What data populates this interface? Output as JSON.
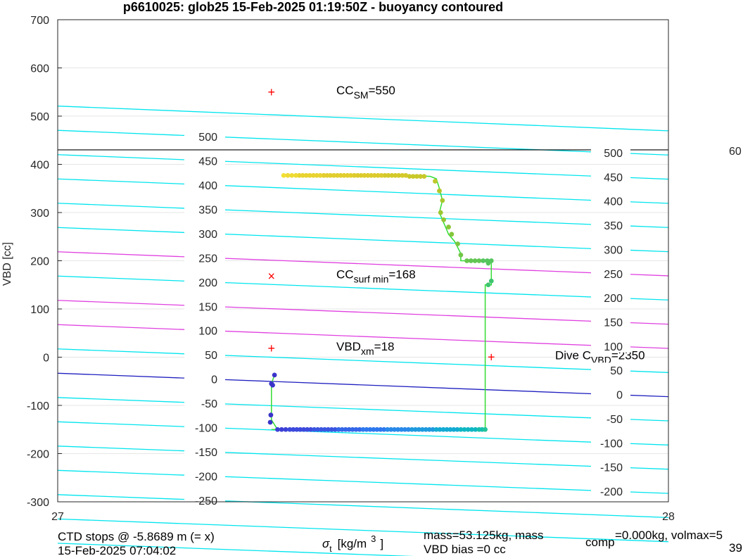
{
  "chart_data": {
    "type": "scatter",
    "title": "p6610025: glob25 15-Feb-2025 01:19:50Z - buoyancy contoured",
    "ylabel": "VBD [cc]",
    "xlabel": {
      "sigma": "σ",
      "sub": "t",
      "text": "[kg/m",
      "sup": "3",
      "close": "]"
    },
    "xlim": [
      27,
      28
    ],
    "ylim": [
      -300,
      700
    ],
    "x_ticks": [
      "27",
      "28"
    ],
    "y_ticks": [
      "-300",
      "-200",
      "-100",
      "0",
      "100",
      "200",
      "300",
      "400",
      "500",
      "600",
      "700"
    ],
    "grid": true,
    "contour_labels_left": [
      "500",
      "450",
      "400",
      "350",
      "300",
      "250",
      "200",
      "150",
      "100",
      "50",
      "0",
      "-50",
      "-100",
      "-150",
      "-200",
      "-250"
    ],
    "contour_labels_right": [
      "500",
      "450",
      "400",
      "350",
      "300",
      "250",
      "200",
      "150",
      "100",
      "50",
      "0",
      "-50",
      "-100",
      "-150",
      "-200"
    ],
    "contour_colors": {
      "normal": "#00e5ee",
      "highlight": "#e040e0",
      "zero": "#2020c0"
    },
    "reference_line_y": 430,
    "annotations": [
      {
        "marker": "+",
        "x": 27.35,
        "y": 550,
        "label_main": "CC",
        "label_sub": "SM",
        "label_rest": "=550"
      },
      {
        "marker": "×",
        "x": 27.35,
        "y": 168,
        "label_main": "CC",
        "label_sub": "surf min",
        "label_rest": "=168"
      },
      {
        "marker": "+",
        "x": 27.35,
        "y": 18,
        "label_main": "VBD",
        "label_sub": "xm",
        "label_rest": "=18"
      },
      {
        "marker": "+",
        "x": 27.71,
        "y": 0,
        "label_main": "Dive C",
        "label_sub": "VBD",
        "label_rest": "=2350"
      }
    ],
    "right_edge_fragment": "60",
    "trajectory": {
      "color_line": "#33dd33",
      "path": [
        [
          27.355,
          -37
        ],
        [
          27.35,
          -55
        ],
        [
          27.35,
          -130
        ],
        [
          27.36,
          -150
        ],
        [
          27.35,
          -150
        ],
        [
          27.7,
          -150
        ],
        [
          27.7,
          150
        ],
        [
          27.71,
          150
        ],
        [
          27.71,
          200
        ],
        [
          27.68,
          200
        ],
        [
          27.66,
          200
        ],
        [
          27.66,
          215
        ],
        [
          27.65,
          240
        ],
        [
          27.64,
          255
        ],
        [
          27.635,
          270
        ],
        [
          27.63,
          285
        ],
        [
          27.625,
          300
        ],
        [
          27.63,
          325
        ],
        [
          27.625,
          350
        ],
        [
          27.62,
          370
        ],
        [
          27.61,
          375
        ],
        [
          27.58,
          377
        ],
        [
          27.55,
          377
        ],
        [
          27.5,
          377
        ],
        [
          27.45,
          377
        ],
        [
          27.4,
          377
        ],
        [
          27.37,
          377
        ]
      ],
      "points": [
        {
          "x": 27.355,
          "y": -37,
          "c": "#3a35c9"
        },
        {
          "x": 27.35,
          "y": -55,
          "c": "#3a35c9"
        },
        {
          "x": 27.352,
          "y": -58,
          "c": "#3a35c9"
        },
        {
          "x": 27.349,
          "y": -120,
          "c": "#3a35c9"
        },
        {
          "x": 27.348,
          "y": -135,
          "c": "#3a35c9"
        },
        {
          "x": 27.36,
          "y": -150,
          "c": "#3d40d6"
        },
        {
          "x": 27.38,
          "y": -150,
          "c": "#3d49dc"
        },
        {
          "x": 27.42,
          "y": -150,
          "c": "#3b55e0"
        },
        {
          "x": 27.46,
          "y": -150,
          "c": "#3366e8"
        },
        {
          "x": 27.5,
          "y": -150,
          "c": "#2d78ee"
        },
        {
          "x": 27.54,
          "y": -150,
          "c": "#2889ea"
        },
        {
          "x": 27.58,
          "y": -150,
          "c": "#1e9adf"
        },
        {
          "x": 27.62,
          "y": -150,
          "c": "#13aad3"
        },
        {
          "x": 27.66,
          "y": -150,
          "c": "#0fb7c3"
        },
        {
          "x": 27.69,
          "y": -150,
          "c": "#15bfad"
        },
        {
          "x": 27.7,
          "y": -150,
          "c": "#22c49a"
        },
        {
          "x": 27.705,
          "y": 150,
          "c": "#3ec46f"
        },
        {
          "x": 27.71,
          "y": 158,
          "c": "#3ec46f"
        },
        {
          "x": 27.705,
          "y": 195,
          "c": "#55c55d"
        },
        {
          "x": 27.71,
          "y": 200,
          "c": "#55c55d"
        },
        {
          "x": 27.69,
          "y": 200,
          "c": "#62c553"
        },
        {
          "x": 27.67,
          "y": 200,
          "c": "#68c54f"
        },
        {
          "x": 27.66,
          "y": 212,
          "c": "#72c648"
        },
        {
          "x": 27.655,
          "y": 235,
          "c": "#7cc641"
        },
        {
          "x": 27.645,
          "y": 255,
          "c": "#84c63c"
        },
        {
          "x": 27.64,
          "y": 270,
          "c": "#8cc637"
        },
        {
          "x": 27.632,
          "y": 285,
          "c": "#94c632"
        },
        {
          "x": 27.627,
          "y": 300,
          "c": "#9dc62e"
        },
        {
          "x": 27.63,
          "y": 325,
          "c": "#a6c62b"
        },
        {
          "x": 27.625,
          "y": 345,
          "c": "#b2c72a"
        },
        {
          "x": 27.618,
          "y": 365,
          "c": "#bec829"
        },
        {
          "x": 27.6,
          "y": 375,
          "c": "#c8c829"
        },
        {
          "x": 27.57,
          "y": 377,
          "c": "#d4c92a"
        },
        {
          "x": 27.53,
          "y": 377,
          "c": "#dccb2c"
        },
        {
          "x": 27.48,
          "y": 377,
          "c": "#e2ce2e"
        },
        {
          "x": 27.43,
          "y": 377,
          "c": "#e8d330"
        },
        {
          "x": 27.39,
          "y": 377,
          "c": "#eedb33"
        },
        {
          "x": 27.37,
          "y": 377,
          "c": "#f2e035"
        }
      ]
    },
    "footer": {
      "left_line1": "CTD stops @ -5.8689 m (= x)",
      "left_line2": "15-Feb-2025 07:04:02",
      "mass_line1_a": "mass=53.125kg, mass",
      "mass_sub": "comp",
      "mass_line1_b": "=0.000kg, volmax=5",
      "mass_line2": "VBD bias =0 cc",
      "right_fragment2": "39"
    }
  }
}
